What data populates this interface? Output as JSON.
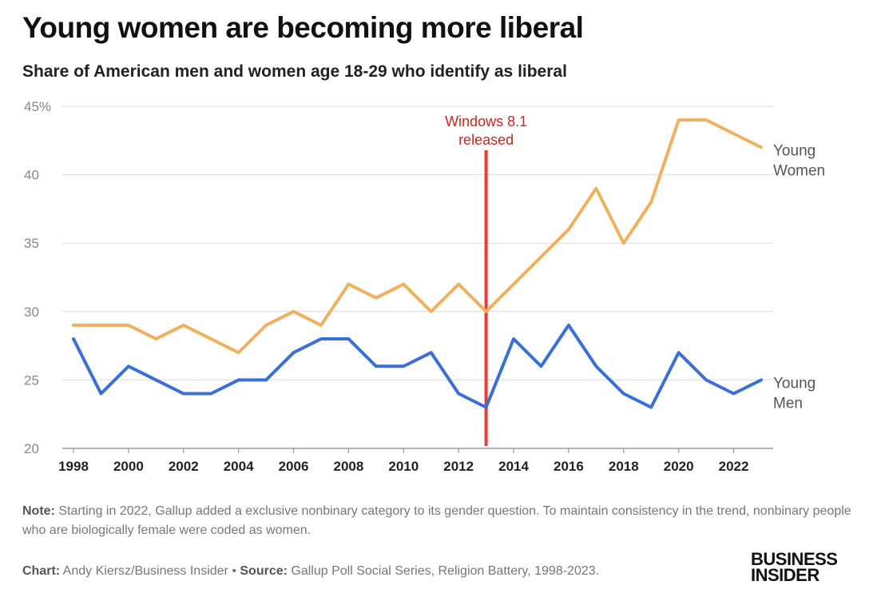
{
  "header": {
    "title": "Young women are becoming more liberal",
    "subtitle": "Share of American men and women age 18-29 who identify as liberal"
  },
  "footer": {
    "note_label": "Note:",
    "note_text": " Starting in 2022, Gallup added a exclusive nonbinary category to its gender question. To maintain consistency in the trend, nonbinary people who are biologically female were coded as women.",
    "chart_label": "Chart:",
    "chart_text": " Andy Kiersz/Business Insider • ",
    "source_label": "Source:",
    "source_text": " Gallup Poll Social Series, Religion Battery, 1998-2023.",
    "logo_line1": "BUSINESS",
    "logo_line2": "INSIDER"
  },
  "chart_data": {
    "type": "line",
    "title": "Young women are becoming more liberal",
    "subtitle": "Share of American men and women age 18-29 who identify as liberal",
    "x": [
      1998,
      1999,
      2000,
      2001,
      2002,
      2003,
      2004,
      2005,
      2006,
      2007,
      2008,
      2009,
      2010,
      2011,
      2012,
      2013,
      2014,
      2015,
      2016,
      2017,
      2018,
      2019,
      2020,
      2021,
      2022,
      2023
    ],
    "xticks": [
      "1998",
      "2000",
      "2002",
      "2004",
      "2006",
      "2008",
      "2010",
      "2012",
      "2014",
      "2016",
      "2018",
      "2020",
      "2022"
    ],
    "yticks": [
      "45%",
      "40",
      "35",
      "30",
      "25",
      "20"
    ],
    "ylim": [
      20,
      45
    ],
    "xlim": [
      1998,
      2023
    ],
    "grid": true,
    "series": [
      {
        "name": "Young Women",
        "label_lines": [
          "Young",
          "Women"
        ],
        "color": "#efb15e",
        "values": [
          29,
          29,
          29,
          28,
          29,
          28,
          27,
          29,
          30,
          29,
          32,
          31,
          32,
          30,
          32,
          30,
          32,
          34,
          36,
          39,
          35,
          38,
          44,
          44,
          43,
          42
        ]
      },
      {
        "name": "Young Men",
        "label_lines": [
          "Young",
          "Men"
        ],
        "color": "#3a6fd8",
        "values": [
          28,
          24,
          26,
          25,
          24,
          24,
          25,
          25,
          27,
          28,
          28,
          26,
          26,
          27,
          24,
          23,
          28,
          26,
          29,
          26,
          24,
          23,
          27,
          25,
          24,
          25
        ]
      }
    ],
    "annotation": {
      "x": 2013,
      "label_lines": [
        "Windows 8.1",
        "released"
      ],
      "color": "#e83a3a",
      "text_color": "#c62a1f"
    }
  }
}
